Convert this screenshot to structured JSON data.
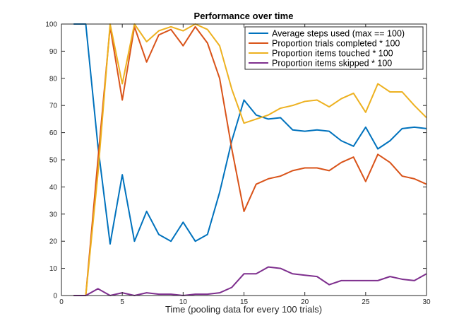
{
  "chart_data": {
    "type": "line",
    "title": "Performance over time",
    "xlabel": "Time (pooling data for every 100 trials)",
    "ylabel": "",
    "xlim": [
      0,
      30
    ],
    "ylim": [
      0,
      100
    ],
    "xticks": [
      0,
      5,
      10,
      15,
      20,
      25,
      30
    ],
    "yticks": [
      0,
      10,
      20,
      30,
      40,
      50,
      60,
      70,
      80,
      90,
      100
    ],
    "grid": false,
    "legend_position": "top-right",
    "x": [
      1,
      2,
      3,
      4,
      5,
      6,
      7,
      8,
      9,
      10,
      11,
      12,
      13,
      14,
      15,
      16,
      17,
      18,
      19,
      20,
      21,
      22,
      23,
      24,
      25,
      26,
      27,
      28,
      29,
      30
    ],
    "series": [
      {
        "name": "Average steps used (max == 100)",
        "color": "#0072BD",
        "values": [
          100,
          100,
          55,
          19,
          44.5,
          20,
          31,
          22.5,
          20,
          27,
          20,
          22.5,
          38,
          57,
          72,
          66.5,
          65,
          65.5,
          61,
          60.5,
          61,
          60.5,
          57,
          55,
          62,
          54,
          57,
          61.5,
          62,
          61.5
        ]
      },
      {
        "name": "Proportion trials completed * 100",
        "color": "#D95319",
        "values": [
          0,
          0,
          50,
          99,
          72,
          99,
          86,
          96,
          98,
          92,
          99,
          93,
          80,
          54,
          31,
          41,
          43,
          44,
          46,
          47,
          47,
          46,
          49,
          51,
          42,
          52,
          49,
          44,
          43,
          41
        ]
      },
      {
        "name": "Proportion items touched * 100",
        "color": "#EDB120",
        "values": [
          0,
          0,
          45,
          100,
          78,
          100,
          93.5,
          97.5,
          99,
          97.5,
          100,
          98,
          92,
          76,
          63.5,
          65,
          66.5,
          69,
          70,
          71.5,
          72,
          69.5,
          72.5,
          74.5,
          67.5,
          78,
          75,
          75,
          70,
          65.5
        ]
      },
      {
        "name": "Proportion items skipped * 100",
        "color": "#7E2F8E",
        "values": [
          0,
          0,
          2.5,
          0,
          1,
          0,
          1,
          0.5,
          0.5,
          0,
          0.5,
          0.5,
          1,
          3,
          8,
          8,
          10.5,
          10,
          8,
          7.5,
          7,
          4,
          5.5,
          5.5,
          5.5,
          5.5,
          7,
          6,
          5.5,
          8
        ]
      }
    ]
  }
}
